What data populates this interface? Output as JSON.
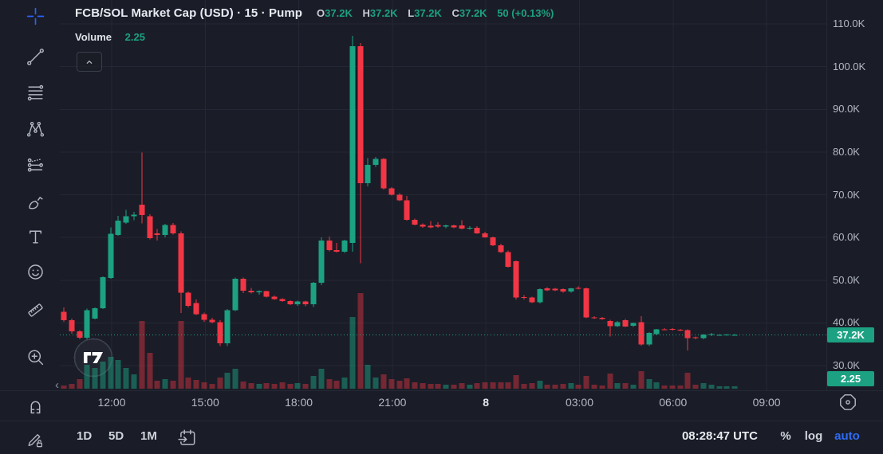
{
  "header": {
    "title": "FCB/SOL Market Cap (USD) · 15 · Pump",
    "ohlc": {
      "o_label": "O",
      "o": "37.2K",
      "h_label": "H",
      "h": "37.2K",
      "l_label": "L",
      "l": "37.2K",
      "c_label": "C",
      "c": "37.2K",
      "change": "50 (+0.13%)"
    },
    "volume_label": "Volume",
    "volume_value": "2.25"
  },
  "left_toolbar": {
    "items": [
      {
        "icon": "crosshair-icon",
        "active": true
      },
      {
        "icon": "trend-line-icon"
      },
      {
        "icon": "fib-retracement-icon"
      },
      {
        "icon": "xabcd-pattern-icon"
      },
      {
        "icon": "forecast-icon"
      },
      {
        "icon": "brush-icon"
      },
      {
        "icon": "text-icon"
      },
      {
        "icon": "emoji-icon"
      },
      {
        "icon": "ruler-icon"
      },
      {
        "icon": "zoom-in-icon"
      },
      {
        "icon": "magnet-icon"
      },
      {
        "icon": "edit-lock-icon"
      }
    ]
  },
  "price_axis": {
    "price_badge": "37.2K",
    "volume_badge": "2.25"
  },
  "time_axis": {
    "history_arrow": "‹"
  },
  "bottom_toolbar": {
    "ranges": [
      "1D",
      "5D",
      "1M"
    ],
    "clock": "08:28:47 UTC",
    "percent_label": "%",
    "log_label": "log",
    "auto_label": "auto"
  },
  "colors": {
    "bg": "#1a1d27",
    "grid": "#242836",
    "up": "#1ca182",
    "down": "#f23645",
    "vol_up": "rgba(28,161,130,0.50)",
    "vol_down": "rgba(242,54,69,0.42)",
    "accent_blue": "#2962ff",
    "badge_green": "#1ca182"
  },
  "chart_data": {
    "type": "candlestick",
    "symbol": "FCB/SOL Market Cap (USD)",
    "interval": "15",
    "venue": "Pump",
    "last_price_k": 37.2,
    "last_volume": 2.25,
    "change_text": "50 (+0.13%)",
    "price_ticks_k": [
      110,
      100,
      90,
      80,
      70,
      60,
      50,
      40,
      30
    ],
    "time_tick_labels": [
      "12:00",
      "15:00",
      "18:00",
      "21:00",
      "8",
      "03:00",
      "06:00",
      "09:00"
    ],
    "candles_ohlcv_k": [
      [
        42.6,
        43.6,
        40.3,
        40.6,
        4
      ],
      [
        40.6,
        41,
        37.5,
        38,
        6
      ],
      [
        38,
        38.3,
        36.2,
        36.5,
        12
      ],
      [
        36.5,
        43.3,
        36.2,
        43,
        30
      ],
      [
        41,
        43.6,
        40.8,
        43.4,
        26
      ],
      [
        43.4,
        50.9,
        43.2,
        50.7,
        34
      ],
      [
        50.5,
        62.4,
        50.3,
        60.9,
        40
      ],
      [
        60.6,
        65.1,
        60.4,
        63.9,
        36
      ],
      [
        63.5,
        66.5,
        63.2,
        65,
        26
      ],
      [
        65,
        66,
        64,
        65.3,
        18
      ],
      [
        67.7,
        79.9,
        63.3,
        65.2,
        85
      ],
      [
        65,
        65.4,
        59.6,
        59.8,
        45
      ],
      [
        61,
        62,
        59.3,
        60.6,
        10
      ],
      [
        60.6,
        63.2,
        60,
        62.9,
        12
      ],
      [
        62.9,
        63.4,
        60.7,
        61,
        10
      ],
      [
        61,
        61.4,
        42.3,
        47.1,
        85
      ],
      [
        47.1,
        47.3,
        43.6,
        44,
        14
      ],
      [
        44.6,
        45.5,
        41.8,
        42,
        11
      ],
      [
        42,
        42.4,
        40.3,
        40.7,
        8
      ],
      [
        40.7,
        41.2,
        39.9,
        40.2,
        6
      ],
      [
        40.2,
        40.6,
        34.6,
        35.2,
        14
      ],
      [
        35.2,
        43.2,
        34.6,
        43,
        20
      ],
      [
        43,
        50.6,
        42.8,
        50.3,
        25
      ],
      [
        50.3,
        50.6,
        47,
        47.5,
        9
      ],
      [
        47.5,
        48.2,
        46.9,
        47.2,
        7
      ],
      [
        47.2,
        47.6,
        46.6,
        47.4,
        6
      ],
      [
        47.4,
        47.5,
        45.9,
        46.1,
        7
      ],
      [
        46.1,
        46.4,
        45.4,
        45.6,
        6
      ],
      [
        45.6,
        45.8,
        44.9,
        45.1,
        8
      ],
      [
        45.1,
        45.3,
        44.2,
        44.4,
        6
      ],
      [
        44.4,
        45.2,
        44,
        45,
        7
      ],
      [
        45,
        45.2,
        43.9,
        44.4,
        6
      ],
      [
        44.4,
        49.6,
        43.7,
        49.4,
        16
      ],
      [
        49.4,
        60,
        48.8,
        59.3,
        25
      ],
      [
        59.3,
        60.2,
        56.8,
        57,
        12
      ],
      [
        57,
        58.7,
        56.5,
        56.7,
        10
      ],
      [
        56.7,
        59.5,
        56.4,
        59.3,
        14
      ],
      [
        58.7,
        107.2,
        56.7,
        104.8,
        90
      ],
      [
        104.8,
        105.5,
        54,
        72.7,
        120
      ],
      [
        72.7,
        78.6,
        72,
        77,
        30
      ],
      [
        77,
        78.9,
        76.5,
        78.4,
        14
      ],
      [
        78.4,
        78.6,
        71.2,
        71.5,
        18
      ],
      [
        71.5,
        71.8,
        69.8,
        70,
        12
      ],
      [
        70,
        70.4,
        68.5,
        68.7,
        10
      ],
      [
        68.7,
        69.7,
        63.9,
        64.1,
        13
      ],
      [
        64.1,
        64.4,
        62.8,
        63,
        8
      ],
      [
        63,
        63.3,
        62.3,
        62.5,
        7
      ],
      [
        62.7,
        63.8,
        62.2,
        62.4,
        6
      ],
      [
        62.9,
        63.6,
        62.3,
        62.5,
        6
      ],
      [
        62.5,
        63,
        62.2,
        62.8,
        5
      ],
      [
        62.8,
        63,
        62.2,
        62.4,
        5
      ],
      [
        62.8,
        64,
        61.9,
        62.1,
        7
      ],
      [
        62.1,
        62.6,
        61.8,
        62.3,
        5
      ],
      [
        62.3,
        62.6,
        60.9,
        61,
        7
      ],
      [
        61,
        61.3,
        59.9,
        60,
        8
      ],
      [
        60,
        60.2,
        58,
        58.2,
        8
      ],
      [
        58.2,
        58.5,
        56.4,
        56.6,
        8
      ],
      [
        56.6,
        56.9,
        52.9,
        53.1,
        8
      ],
      [
        54.4,
        54.6,
        45.5,
        45.9,
        17
      ],
      [
        46,
        46.5,
        45.5,
        45.9,
        6
      ],
      [
        45.9,
        46.1,
        44.6,
        44.8,
        7
      ],
      [
        44.8,
        48.1,
        44.5,
        47.9,
        10
      ],
      [
        48.1,
        48.4,
        47.4,
        47.6,
        5
      ],
      [
        48,
        48.2,
        47.4,
        47.6,
        5
      ],
      [
        47.9,
        48.1,
        47.1,
        47.3,
        6
      ],
      [
        47.3,
        48.2,
        47.1,
        48.1,
        7
      ],
      [
        48.2,
        48.6,
        47.8,
        48,
        5
      ],
      [
        48.1,
        48.3,
        41.1,
        41.3,
        16
      ],
      [
        41.3,
        41.6,
        40.9,
        41.1,
        5
      ],
      [
        41.2,
        41.4,
        40.7,
        40.9,
        4
      ],
      [
        40.4,
        40.7,
        36.8,
        39.2,
        19
      ],
      [
        39.2,
        40.4,
        39,
        40.2,
        7
      ],
      [
        40.6,
        40.9,
        39,
        39.1,
        7
      ],
      [
        39.3,
        40.1,
        39,
        40,
        5
      ],
      [
        40.2,
        41.6,
        34.7,
        34.9,
        22
      ],
      [
        34.9,
        37.8,
        34.6,
        37.6,
        12
      ],
      [
        37.4,
        38.6,
        37.2,
        38.5,
        8
      ],
      [
        38.5,
        38.8,
        38.3,
        38.4,
        4
      ],
      [
        38.6,
        38.8,
        38.2,
        38.4,
        4
      ],
      [
        38.4,
        38.6,
        38.1,
        38.3,
        4
      ],
      [
        38.3,
        38.5,
        33.5,
        36.4,
        20
      ],
      [
        36.6,
        36.8,
        36.2,
        36.4,
        5
      ],
      [
        36.4,
        37.4,
        36.2,
        37.3,
        7
      ],
      [
        37.3,
        37.6,
        36.9,
        37.4,
        5
      ],
      [
        37.1,
        37.4,
        37,
        37.2,
        3
      ],
      [
        37.2,
        37.4,
        37,
        37.3,
        3
      ],
      [
        37.2,
        37.5,
        37.1,
        37.2,
        3
      ]
    ]
  }
}
